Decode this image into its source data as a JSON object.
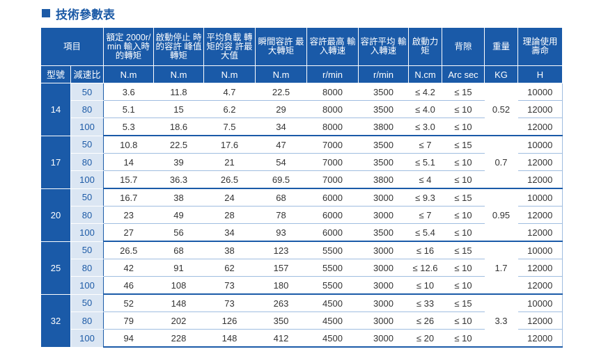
{
  "title": "技術參數表",
  "headers": {
    "item": "項目",
    "rated_torque": "額定 2000r/ min 輸入時 的轉矩",
    "peak_torque": "啟動停止 時的容許 峰值轉矩",
    "avg_load_torque": "平均負載 轉矩的容 許最大值",
    "instant_max_torque": "瞬間容許 最大轉矩",
    "max_input_speed": "容許最高 輸入轉速",
    "avg_input_speed": "容許平均 輸入轉速",
    "starting_torque": "啟動力 矩",
    "backlash": "背隙",
    "weight": "重量",
    "life": "理論使用 壽命"
  },
  "subheaders": {
    "model": "型號",
    "ratio": "減速比",
    "units": [
      "N.m",
      "N.m",
      "N.m",
      "N.m",
      "r/min",
      "r/min",
      "N.cm",
      "Arc sec",
      "KG",
      "H"
    ]
  },
  "groups": [
    {
      "model": "14",
      "weight": "0.52",
      "rows": [
        {
          "ratio": "50",
          "rated": "3.6",
          "peak": "11.8",
          "avg_load": "4.7",
          "instant": "22.5",
          "max_speed": "8000",
          "avg_speed": "3500",
          "start_torque": "≤ 4.2",
          "backlash": "≤ 15",
          "life": "10000"
        },
        {
          "ratio": "80",
          "rated": "5.1",
          "peak": "15",
          "avg_load": "6.2",
          "instant": "29",
          "max_speed": "8000",
          "avg_speed": "3500",
          "start_torque": "≤ 4.0",
          "backlash": "≤ 10",
          "life": "12000"
        },
        {
          "ratio": "100",
          "rated": "5.3",
          "peak": "18.6",
          "avg_load": "7.5",
          "instant": "34",
          "max_speed": "8000",
          "avg_speed": "3800",
          "start_torque": "≤ 3.0",
          "backlash": "≤ 10",
          "life": "12000"
        }
      ]
    },
    {
      "model": "17",
      "weight": "0.7",
      "rows": [
        {
          "ratio": "50",
          "rated": "10.8",
          "peak": "22.5",
          "avg_load": "17.6",
          "instant": "47",
          "max_speed": "7000",
          "avg_speed": "3500",
          "start_torque": "≤ 7",
          "backlash": "≤ 15",
          "life": "10000"
        },
        {
          "ratio": "80",
          "rated": "14",
          "peak": "39",
          "avg_load": "21",
          "instant": "54",
          "max_speed": "7000",
          "avg_speed": "3500",
          "start_torque": "≤ 5.1",
          "backlash": "≤ 10",
          "life": "12000"
        },
        {
          "ratio": "100",
          "rated": "15.7",
          "peak": "36.3",
          "avg_load": "26.5",
          "instant": "69.5",
          "max_speed": "7000",
          "avg_speed": "3800",
          "start_torque": "≤ 4",
          "backlash": "≤ 10",
          "life": "12000"
        }
      ]
    },
    {
      "model": "20",
      "weight": "0.95",
      "rows": [
        {
          "ratio": "50",
          "rated": "16.7",
          "peak": "38",
          "avg_load": "24",
          "instant": "68",
          "max_speed": "6000",
          "avg_speed": "3000",
          "start_torque": "≤ 9.3",
          "backlash": "≤ 15",
          "life": "10000"
        },
        {
          "ratio": "80",
          "rated": "23",
          "peak": "49",
          "avg_load": "28",
          "instant": "78",
          "max_speed": "6000",
          "avg_speed": "3000",
          "start_torque": "≤ 7",
          "backlash": "≤ 10",
          "life": "12000"
        },
        {
          "ratio": "100",
          "rated": "27",
          "peak": "56",
          "avg_load": "34",
          "instant": "93",
          "max_speed": "6000",
          "avg_speed": "3500",
          "start_torque": "≤ 5.4",
          "backlash": "≤ 10",
          "life": "12000"
        }
      ]
    },
    {
      "model": "25",
      "weight": "1.7",
      "rows": [
        {
          "ratio": "50",
          "rated": "26.5",
          "peak": "68",
          "avg_load": "38",
          "instant": "123",
          "max_speed": "5500",
          "avg_speed": "3000",
          "start_torque": "≤ 16",
          "backlash": "≤ 15",
          "life": "10000"
        },
        {
          "ratio": "80",
          "rated": "42",
          "peak": "91",
          "avg_load": "62",
          "instant": "157",
          "max_speed": "5500",
          "avg_speed": "3000",
          "start_torque": "≤ 12.6",
          "backlash": "≤ 10",
          "life": "12000"
        },
        {
          "ratio": "100",
          "rated": "46",
          "peak": "108",
          "avg_load": "73",
          "instant": "180",
          "max_speed": "5500",
          "avg_speed": "3000",
          "start_torque": "≤ 10",
          "backlash": "≤ 10",
          "life": "12000"
        }
      ]
    },
    {
      "model": "32",
      "weight": "3.3",
      "rows": [
        {
          "ratio": "50",
          "rated": "52",
          "peak": "148",
          "avg_load": "73",
          "instant": "263",
          "max_speed": "4500",
          "avg_speed": "3000",
          "start_torque": "≤ 33",
          "backlash": "≤ 15",
          "life": "10000"
        },
        {
          "ratio": "80",
          "rated": "79",
          "peak": "202",
          "avg_load": "126",
          "instant": "350",
          "max_speed": "4500",
          "avg_speed": "3000",
          "start_torque": "≤ 26",
          "backlash": "≤ 10",
          "life": "12000"
        },
        {
          "ratio": "100",
          "rated": "94",
          "peak": "228",
          "avg_load": "148",
          "instant": "412",
          "max_speed": "4500",
          "avg_speed": "3000",
          "start_torque": "≤ 20",
          "backlash": "≤ 10",
          "life": "12000"
        }
      ]
    }
  ]
}
